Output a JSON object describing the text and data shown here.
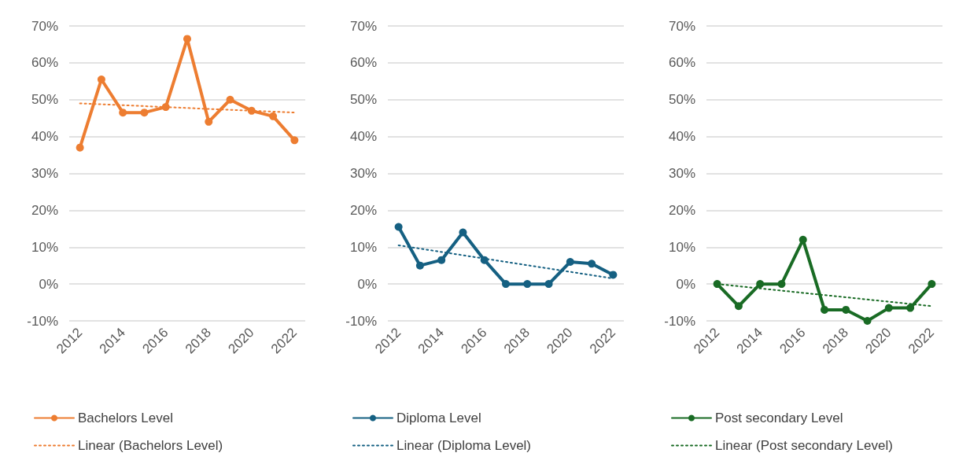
{
  "chart_data": [
    {
      "type": "line",
      "xlim": [
        2011.5,
        2022.5
      ],
      "xticks": [
        2012,
        2014,
        2016,
        2018,
        2020,
        2022
      ],
      "ylim": [
        -10,
        70
      ],
      "yticks": [
        {
          "value": -10,
          "label": "-10%"
        },
        {
          "value": 0,
          "label": "0%"
        },
        {
          "value": 10,
          "label": "10%"
        },
        {
          "value": 20,
          "label": "20%"
        },
        {
          "value": 30,
          "label": "30%"
        },
        {
          "value": 40,
          "label": "40%"
        },
        {
          "value": 50,
          "label": "50%"
        },
        {
          "value": 60,
          "label": "60%"
        },
        {
          "value": 70,
          "label": "70%"
        }
      ],
      "grid": "y",
      "legend": "bottom",
      "series": [
        {
          "name": "Bachelors Level",
          "color": "#ed7d31",
          "marker": "circle",
          "line_style": "solid",
          "x": [
            2012,
            2013,
            2014,
            2015,
            2016,
            2017,
            2018,
            2019,
            2020,
            2021,
            2022
          ],
          "values": [
            37,
            55.5,
            46.5,
            46.5,
            48,
            66.5,
            44,
            50,
            47,
            45.5,
            39
          ]
        },
        {
          "name": "Linear (Bachelors Level)",
          "color": "#ed7d31",
          "marker": "none",
          "line_style": "dotted",
          "x": [
            2012,
            2022
          ],
          "values": [
            49,
            46.5
          ]
        }
      ]
    },
    {
      "type": "line",
      "xlim": [
        2011.5,
        2022.5
      ],
      "xticks": [
        2012,
        2014,
        2016,
        2018,
        2020,
        2022
      ],
      "ylim": [
        -10,
        70
      ],
      "yticks": [
        {
          "value": -10,
          "label": "-10%"
        },
        {
          "value": 0,
          "label": "0%"
        },
        {
          "value": 10,
          "label": "10%"
        },
        {
          "value": 20,
          "label": "20%"
        },
        {
          "value": 30,
          "label": "30%"
        },
        {
          "value": 40,
          "label": "40%"
        },
        {
          "value": 50,
          "label": "50%"
        },
        {
          "value": 60,
          "label": "60%"
        },
        {
          "value": 70,
          "label": "70%"
        }
      ],
      "grid": "y",
      "legend": "bottom",
      "series": [
        {
          "name": "Diploma Level",
          "color": "#156082",
          "marker": "circle",
          "line_style": "solid",
          "x": [
            2012,
            2013,
            2014,
            2015,
            2016,
            2017,
            2018,
            2019,
            2020,
            2021,
            2022
          ],
          "values": [
            15.5,
            5,
            6.5,
            14,
            6.5,
            0,
            0,
            0,
            6,
            5.5,
            2.5
          ]
        },
        {
          "name": "Linear (Diploma Level)",
          "color": "#156082",
          "marker": "none",
          "line_style": "dotted",
          "x": [
            2012,
            2022
          ],
          "values": [
            10.5,
            1.5
          ]
        }
      ]
    },
    {
      "type": "line",
      "xlim": [
        2011.5,
        2022.5
      ],
      "xticks": [
        2012,
        2014,
        2016,
        2018,
        2020,
        2022
      ],
      "ylim": [
        -10,
        70
      ],
      "yticks": [
        {
          "value": -10,
          "label": "-10%"
        },
        {
          "value": 0,
          "label": "0%"
        },
        {
          "value": 10,
          "label": "10%"
        },
        {
          "value": 20,
          "label": "20%"
        },
        {
          "value": 30,
          "label": "30%"
        },
        {
          "value": 40,
          "label": "40%"
        },
        {
          "value": 50,
          "label": "50%"
        },
        {
          "value": 60,
          "label": "60%"
        },
        {
          "value": 70,
          "label": "70%"
        }
      ],
      "grid": "y",
      "legend": "bottom",
      "series": [
        {
          "name": "Post secondary Level",
          "color": "#196b24",
          "marker": "circle",
          "line_style": "solid",
          "x": [
            2012,
            2013,
            2014,
            2015,
            2016,
            2017,
            2018,
            2019,
            2020,
            2021,
            2022
          ],
          "values": [
            0,
            -6,
            0,
            0,
            12,
            -7,
            -7,
            -10,
            -6.5,
            -6.5,
            0
          ]
        },
        {
          "name": "Linear (Post secondary Level)",
          "color": "#196b24",
          "marker": "none",
          "line_style": "dotted",
          "x": [
            2012,
            2022
          ],
          "values": [
            0,
            -6
          ]
        }
      ]
    }
  ]
}
